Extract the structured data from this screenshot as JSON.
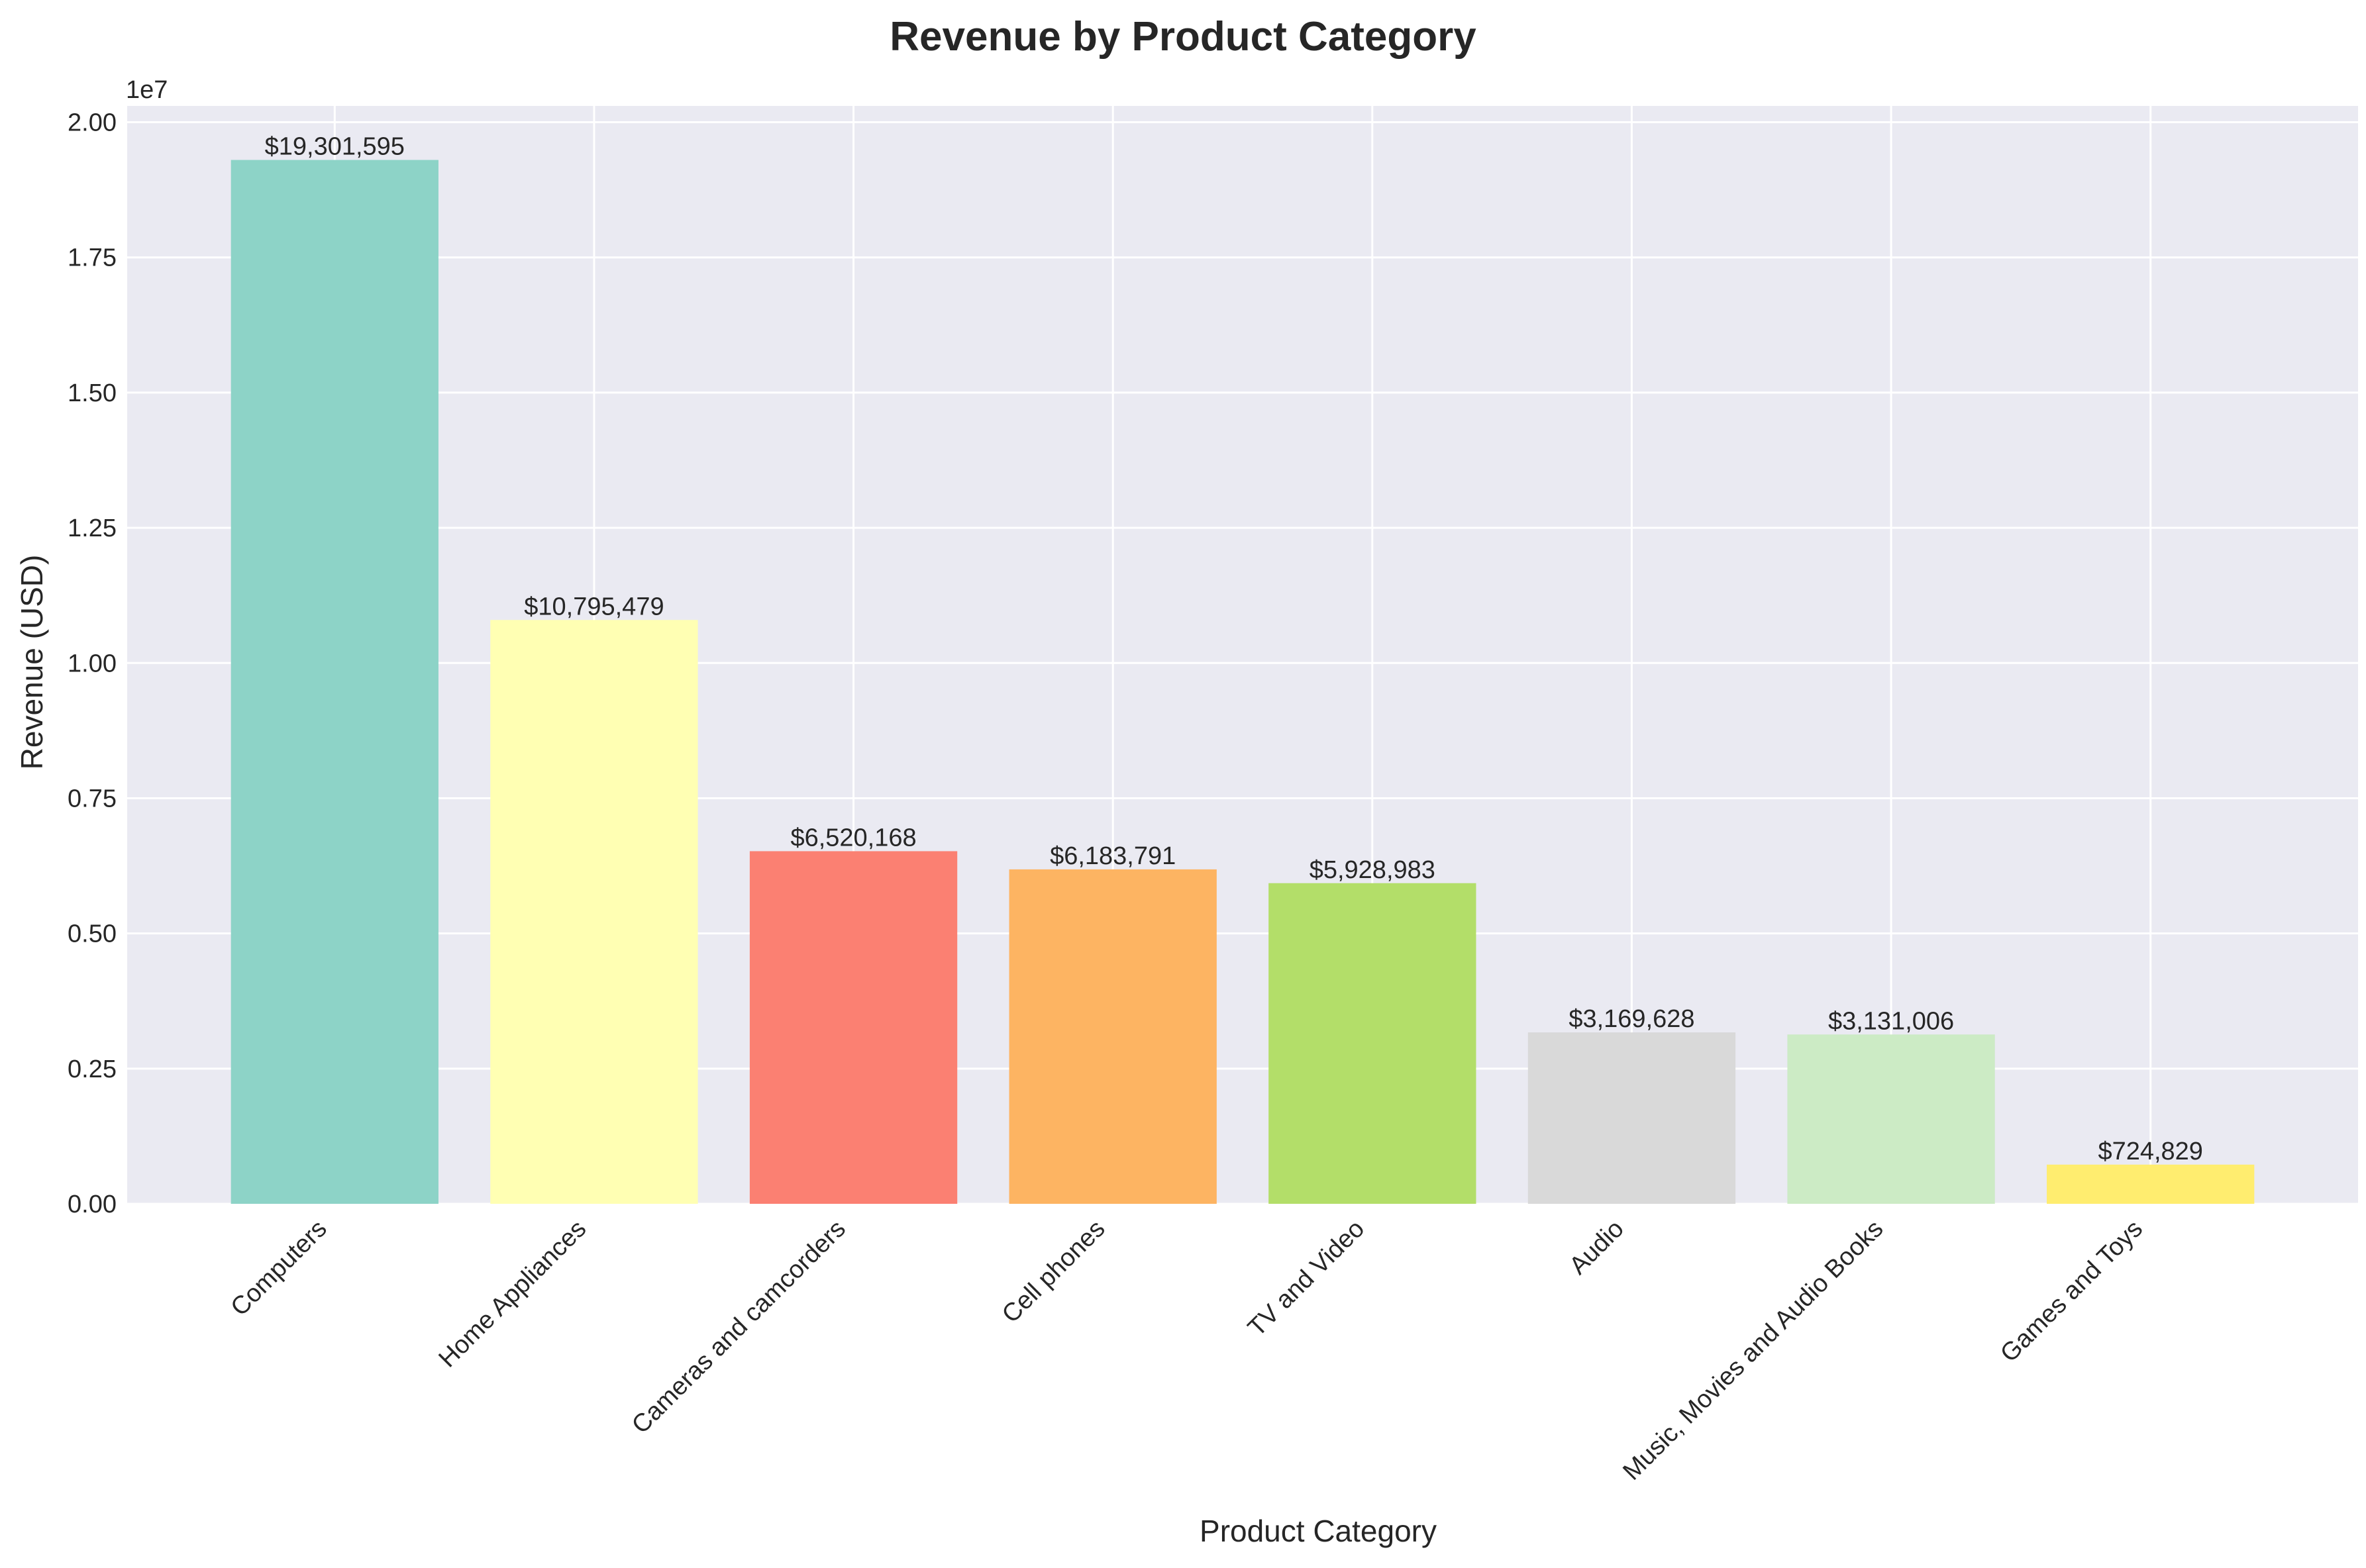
{
  "chart_data": {
    "type": "bar",
    "title": "Revenue by Product Category",
    "xlabel": "Product Category",
    "ylabel": "Revenue (USD)",
    "y_offset_label": "1e7",
    "ylim": [
      0,
      20300000
    ],
    "y_ticks": [
      0,
      2500000,
      5000000,
      7500000,
      10000000,
      12500000,
      15000000,
      17500000,
      20000000
    ],
    "y_tick_labels": [
      "0.00",
      "0.25",
      "0.50",
      "0.75",
      "1.00",
      "1.25",
      "1.50",
      "1.75",
      "2.00"
    ],
    "categories": [
      "Computers",
      "Home Appliances",
      "Cameras and camcorders",
      "Cell phones",
      "TV and Video",
      "Audio",
      "Music, Movies and Audio Books",
      "Games and Toys"
    ],
    "values": [
      19301595,
      10795479,
      6520168,
      6183791,
      5928983,
      3169628,
      3131006,
      724829
    ],
    "value_labels": [
      "$19,301,595",
      "$10,795,479",
      "$6,520,168",
      "$6,183,791",
      "$5,928,983",
      "$3,169,628",
      "$3,131,006",
      "$724,829"
    ],
    "colors": [
      "#8dd3c7",
      "#ffffb3",
      "#fb8072",
      "#fdb462",
      "#b3de69",
      "#d9d9d9",
      "#ccebc5",
      "#ffed6f"
    ],
    "grid": true,
    "background_color": "#eaeaf2",
    "grid_color": "#ffffff"
  }
}
